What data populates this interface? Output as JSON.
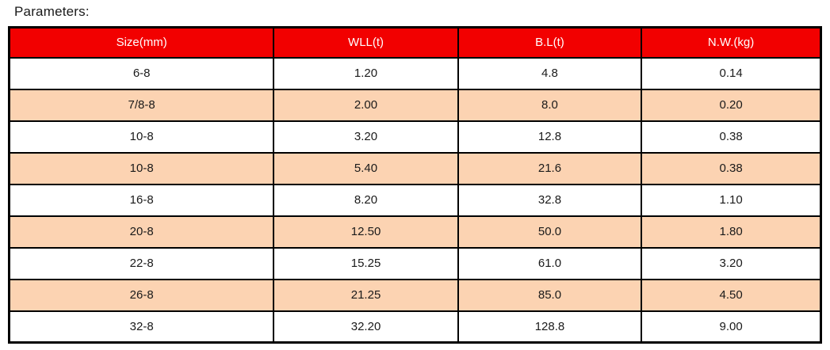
{
  "title": "Parameters:",
  "table": {
    "columns": [
      "Size(mm)",
      "WLL(t)",
      "B.L(t)",
      "N.W.(kg)"
    ],
    "rows": [
      [
        "6-8",
        "1.20",
        "4.8",
        "0.14"
      ],
      [
        "7/8-8",
        "2.00",
        "8.0",
        "0.20"
      ],
      [
        "10-8",
        "3.20",
        "12.8",
        "0.38"
      ],
      [
        "10-8",
        "5.40",
        "21.6",
        "0.38"
      ],
      [
        "16-8",
        "8.20",
        "32.8",
        "1.10"
      ],
      [
        "20-8",
        "12.50",
        "50.0",
        "1.80"
      ],
      [
        "22-8",
        "15.25",
        "61.0",
        "3.20"
      ],
      [
        "26-8",
        "21.25",
        "85.0",
        "4.50"
      ],
      [
        "32-8",
        "32.20",
        "128.8",
        "9.00"
      ]
    ],
    "colors": {
      "header_bg": "#f20000",
      "header_text": "#ffffff",
      "row_bg": "#ffffff",
      "row_alt_bg": "#fcd3b2",
      "border": "#000000"
    }
  },
  "chart_data": {
    "type": "table",
    "title": "Parameters:",
    "columns": [
      "Size(mm)",
      "WLL(t)",
      "B.L(t)",
      "N.W.(kg)"
    ],
    "rows": [
      [
        "6-8",
        "1.20",
        "4.8",
        "0.14"
      ],
      [
        "7/8-8",
        "2.00",
        "8.0",
        "0.20"
      ],
      [
        "10-8",
        "3.20",
        "12.8",
        "0.38"
      ],
      [
        "10-8",
        "5.40",
        "21.6",
        "0.38"
      ],
      [
        "16-8",
        "8.20",
        "32.8",
        "1.10"
      ],
      [
        "20-8",
        "12.50",
        "50.0",
        "1.80"
      ],
      [
        "22-8",
        "15.25",
        "61.0",
        "3.20"
      ],
      [
        "26-8",
        "21.25",
        "85.0",
        "4.50"
      ],
      [
        "32-8",
        "32.20",
        "128.8",
        "9.00"
      ]
    ]
  }
}
